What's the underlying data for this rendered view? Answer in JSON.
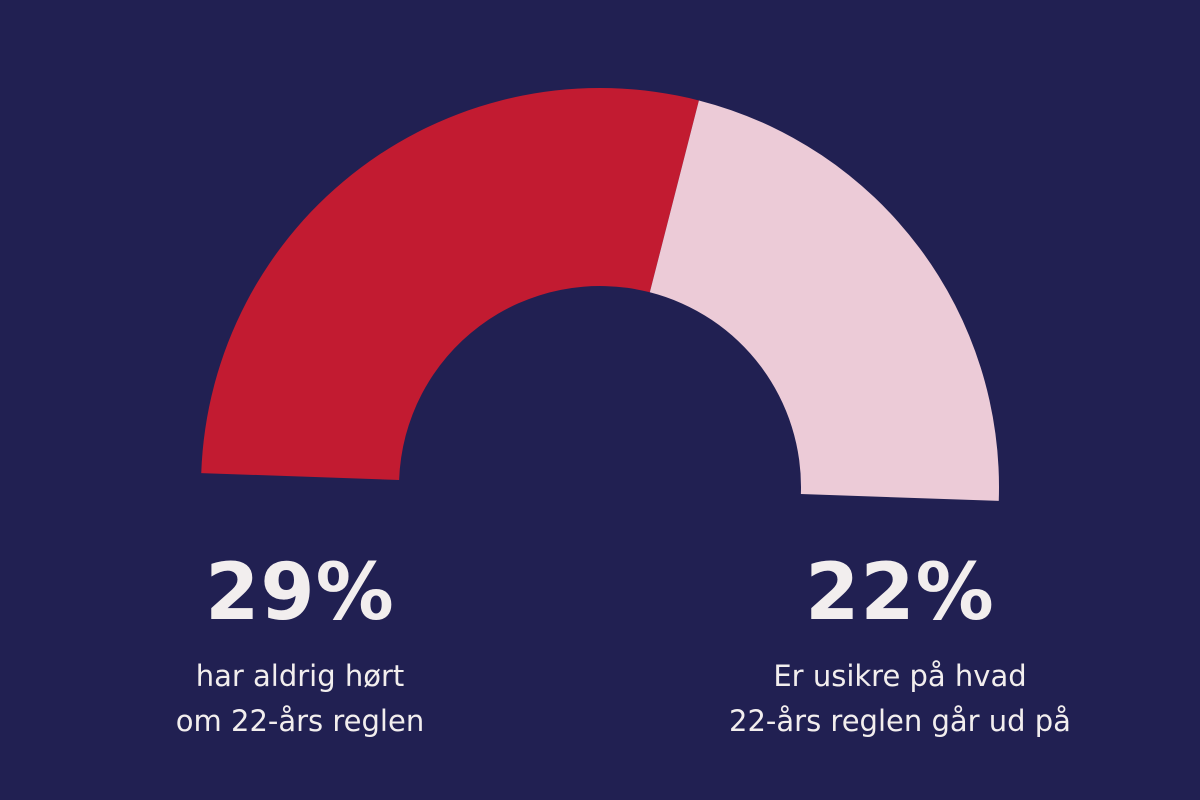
{
  "chart_data": {
    "type": "pie",
    "variant": "half-donut gauge",
    "series": [
      {
        "value": 29,
        "percent_label": "29%",
        "label_lines": [
          "har aldrig hørt",
          "om 22-års reglen"
        ],
        "color": "#c21b31"
      },
      {
        "value": 22,
        "percent_label": "22%",
        "label_lines": [
          "Er usikre på hvad",
          "22-års reglen går ud på"
        ],
        "color": "#eccbd7"
      }
    ]
  },
  "colors": {
    "background": "#212052",
    "text": "#f2eeee"
  }
}
